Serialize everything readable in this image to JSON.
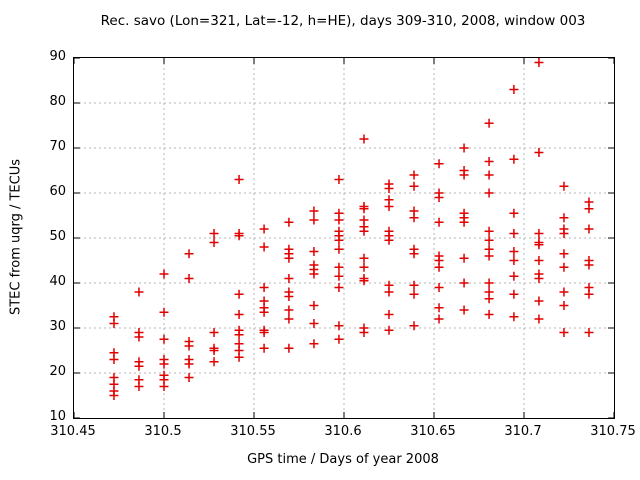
{
  "title": "Rec. savo (Lon=321, Lat=-12, h=HE), days 309-310, 2008, window 003",
  "colors": {
    "background": "#ffffff",
    "text": "#000000",
    "axis": "#000000",
    "grid": "#b4b4b4",
    "marker": "#e00000"
  },
  "chart_data": {
    "type": "scatter",
    "title": "Rec. savo (Lon=321, Lat=-12, h=HE), days 309-310, 2008, window 003",
    "xlabel": "GPS time / Days of year 2008",
    "ylabel": "STEC from uqrg / TECUs",
    "xlim": [
      310.45,
      310.75
    ],
    "ylim": [
      10,
      90
    ],
    "x_tick_values": [
      310.45,
      310.5,
      310.55,
      310.6,
      310.65,
      310.7,
      310.75
    ],
    "x_tick_labels": [
      "310.45",
      "310.5",
      "310.55",
      "310.6",
      "310.65",
      "310.7",
      "310.75"
    ],
    "y_tick_values": [
      10,
      20,
      30,
      40,
      50,
      60,
      70,
      80,
      90
    ],
    "y_tick_labels": [
      "10",
      "20",
      "30",
      "40",
      "50",
      "60",
      "70",
      "80",
      "90"
    ],
    "grid": true,
    "legend": "none",
    "marker": "plus",
    "series_name": "STEC",
    "columns": [
      {
        "x": 310.4722,
        "stec": [
          32.5,
          31,
          24.5,
          23,
          19,
          17.5,
          16,
          15
        ]
      },
      {
        "x": 310.4861,
        "stec": [
          38,
          29,
          28,
          22.5,
          21.5,
          18.5,
          17
        ]
      },
      {
        "x": 310.5,
        "stec": [
          42,
          33.5,
          27.5,
          23,
          22,
          19.5,
          18.5,
          17
        ]
      },
      {
        "x": 310.5139,
        "stec": [
          46.5,
          41,
          27,
          26,
          23,
          22,
          19
        ]
      },
      {
        "x": 310.5278,
        "stec": [
          51,
          49,
          29,
          25.5,
          25,
          22.5
        ]
      },
      {
        "x": 310.5417,
        "stec": [
          63,
          51,
          50.5,
          37.5,
          33,
          29.5,
          28.5,
          26.5,
          25,
          23.5
        ]
      },
      {
        "x": 310.5556,
        "stec": [
          52,
          48,
          39,
          36,
          34.5,
          33.5,
          29.5,
          29,
          25.5
        ]
      },
      {
        "x": 310.5694,
        "stec": [
          53.5,
          47.5,
          46.5,
          45.5,
          41,
          38,
          37,
          34,
          32,
          25.5
        ]
      },
      {
        "x": 310.5833,
        "stec": [
          56,
          54,
          47,
          44,
          43,
          42,
          35,
          31,
          26.5
        ]
      },
      {
        "x": 310.5972,
        "stec": [
          63,
          55.5,
          54,
          51.5,
          50.5,
          49.5,
          47.5,
          43.5,
          41.5,
          39,
          30.5,
          27.5
        ]
      },
      {
        "x": 310.6111,
        "stec": [
          72,
          57,
          56.5,
          54,
          52.5,
          51.5,
          45.5,
          43.5,
          41,
          40.5,
          30,
          29
        ]
      },
      {
        "x": 310.625,
        "stec": [
          62,
          61,
          58.5,
          57,
          51.5,
          50.5,
          49.5,
          39.5,
          38,
          33,
          29.5
        ]
      },
      {
        "x": 310.6389,
        "stec": [
          64,
          61.5,
          56,
          54.5,
          47.5,
          46.5,
          39.5,
          37.5,
          30.5
        ]
      },
      {
        "x": 310.6528,
        "stec": [
          66.5,
          60,
          59,
          53.5,
          46,
          45,
          43.5,
          39,
          34.5,
          32
        ]
      },
      {
        "x": 310.6667,
        "stec": [
          70,
          65,
          64,
          55.5,
          54.5,
          53.5,
          45.5,
          40,
          34
        ]
      },
      {
        "x": 310.6806,
        "stec": [
          75.5,
          67,
          64,
          60,
          51.5,
          49.5,
          47.5,
          46,
          40,
          38,
          36.5,
          33
        ]
      },
      {
        "x": 310.6944,
        "stec": [
          83,
          67.5,
          55.5,
          51,
          47,
          45,
          41.5,
          37.5,
          32.5
        ]
      },
      {
        "x": 310.7083,
        "stec": [
          89,
          69,
          51,
          49,
          48.5,
          45,
          42,
          41,
          36,
          32
        ]
      },
      {
        "x": 310.7222,
        "stec": [
          61.5,
          54.5,
          52,
          51,
          46.5,
          43.5,
          38,
          35,
          29
        ]
      },
      {
        "x": 310.7361,
        "stec": [
          58,
          56.5,
          52,
          45,
          44,
          39,
          37.5,
          29
        ]
      }
    ]
  }
}
